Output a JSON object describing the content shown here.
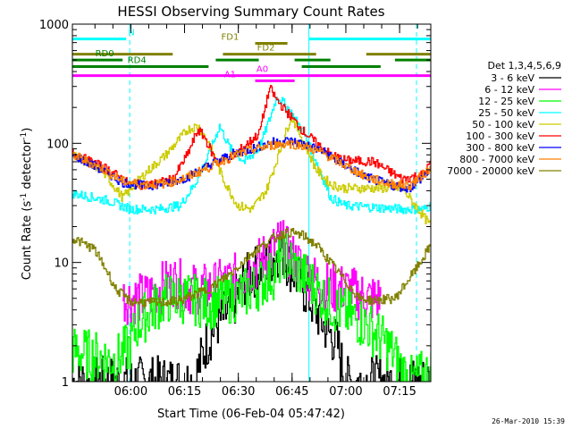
{
  "chart_data": {
    "type": "line",
    "title": "HESSI Observing Summary Count Rates",
    "xlabel": "Start Time (06-Feb-04 05:47:42)",
    "ylabel": "Count Rate (s⁻¹ detector⁻¹)",
    "ylabel_parts": [
      "Count Rate (s",
      "-1",
      " detector",
      "-1",
      ")"
    ],
    "yscale": "log",
    "xlim": [
      -4,
      96
    ],
    "ylim": [
      1,
      1000
    ],
    "x_unit": "minutes after 05:47:42",
    "x_ticks": [
      {
        "x": 12.3,
        "label": "06:00"
      },
      {
        "x": 27.3,
        "label": "06:15"
      },
      {
        "x": 42.3,
        "label": "06:30"
      },
      {
        "x": 57.3,
        "label": "06:45"
      },
      {
        "x": 72.3,
        "label": "07:00"
      },
      {
        "x": 87.3,
        "label": "07:15"
      }
    ],
    "y_ticks": [
      {
        "y": 1,
        "label": "1"
      },
      {
        "y": 10,
        "label": "10"
      },
      {
        "y": 100,
        "label": "100"
      },
      {
        "y": 1000,
        "label": "1000"
      }
    ],
    "legend": {
      "title": "Det 1,3,4,5,6,9",
      "placement": "right"
    },
    "series": [
      {
        "name": "3 - 6 keV",
        "color": "#000000",
        "pts": [
          [
            -4,
            1
          ],
          [
            30,
            1
          ],
          [
            33,
            2
          ],
          [
            36,
            3
          ],
          [
            40,
            4
          ],
          [
            44,
            7
          ],
          [
            48,
            9
          ],
          [
            52,
            11
          ],
          [
            54,
            13
          ],
          [
            56,
            10
          ],
          [
            58,
            8
          ],
          [
            62,
            5
          ],
          [
            66,
            3
          ],
          [
            70,
            2
          ],
          [
            72,
            1
          ],
          [
            96,
            1
          ]
        ]
      },
      {
        "name": "6 - 12 keV",
        "color": "#ff00ff",
        "pts": [
          [
            10,
            5
          ],
          [
            16,
            5
          ],
          [
            20,
            6
          ],
          [
            24,
            7
          ],
          [
            28,
            6
          ],
          [
            34,
            6
          ],
          [
            40,
            7
          ],
          [
            44,
            8
          ],
          [
            48,
            10
          ],
          [
            52,
            13
          ],
          [
            54,
            15
          ],
          [
            56,
            12
          ],
          [
            60,
            9
          ],
          [
            64,
            7
          ],
          [
            68,
            6
          ],
          [
            72,
            6
          ],
          [
            78,
            5
          ],
          [
            82,
            5
          ]
        ]
      },
      {
        "name": "12 - 25 keV",
        "color": "#00ff00",
        "pts": [
          [
            -4,
            1.8
          ],
          [
            8,
            1.5
          ],
          [
            12,
            2
          ],
          [
            14,
            3
          ],
          [
            18,
            4
          ],
          [
            22,
            5
          ],
          [
            28,
            5
          ],
          [
            34,
            4.5
          ],
          [
            40,
            5
          ],
          [
            44,
            5.5
          ],
          [
            48,
            6.5
          ],
          [
            52,
            8
          ],
          [
            55,
            12
          ],
          [
            58,
            9
          ],
          [
            62,
            7
          ],
          [
            66,
            5
          ],
          [
            70,
            4
          ],
          [
            74,
            3.5
          ],
          [
            78,
            3
          ],
          [
            84,
            2
          ],
          [
            90,
            1
          ],
          [
            96,
            1.2
          ]
        ]
      },
      {
        "name": "25 - 50 keV",
        "color": "#00ffff",
        "pts": [
          [
            -4,
            38
          ],
          [
            6,
            33
          ],
          [
            12,
            28
          ],
          [
            20,
            28
          ],
          [
            26,
            30
          ],
          [
            30,
            45
          ],
          [
            34,
            80
          ],
          [
            37,
            140
          ],
          [
            40,
            90
          ],
          [
            44,
            70
          ],
          [
            48,
            90
          ],
          [
            51,
            160
          ],
          [
            53,
            250
          ],
          [
            56,
            200
          ],
          [
            60,
            130
          ],
          [
            64,
            70
          ],
          [
            68,
            35
          ],
          [
            72,
            30
          ],
          [
            80,
            29
          ],
          [
            88,
            28
          ],
          [
            94,
            28
          ],
          [
            96,
            30
          ]
        ]
      },
      {
        "name": "50 - 100 keV",
        "color": "#cccc00",
        "pts": [
          [
            -4,
            80
          ],
          [
            4,
            60
          ],
          [
            10,
            35
          ],
          [
            16,
            55
          ],
          [
            22,
            80
          ],
          [
            28,
            130
          ],
          [
            31,
            140
          ],
          [
            34,
            100
          ],
          [
            38,
            50
          ],
          [
            42,
            30
          ],
          [
            46,
            28
          ],
          [
            50,
            40
          ],
          [
            54,
            90
          ],
          [
            57,
            170
          ],
          [
            60,
            110
          ],
          [
            64,
            60
          ],
          [
            68,
            45
          ],
          [
            72,
            42
          ],
          [
            80,
            42
          ],
          [
            88,
            42
          ],
          [
            96,
            20
          ]
        ]
      },
      {
        "name": "100 - 300 keV",
        "color": "#ff0000",
        "pts": [
          [
            -4,
            82
          ],
          [
            6,
            60
          ],
          [
            12,
            45
          ],
          [
            18,
            45
          ],
          [
            24,
            50
          ],
          [
            28,
            80
          ],
          [
            31,
            130
          ],
          [
            33,
            110
          ],
          [
            36,
            70
          ],
          [
            40,
            75
          ],
          [
            44,
            95
          ],
          [
            48,
            120
          ],
          [
            51,
            290
          ],
          [
            53,
            230
          ],
          [
            56,
            180
          ],
          [
            60,
            130
          ],
          [
            64,
            100
          ],
          [
            68,
            80
          ],
          [
            72,
            72
          ],
          [
            80,
            70
          ],
          [
            88,
            50
          ],
          [
            94,
            55
          ],
          [
            96,
            70
          ]
        ]
      },
      {
        "name": "300 - 800 keV",
        "color": "#0000ff",
        "pts": [
          [
            -4,
            80
          ],
          [
            4,
            60
          ],
          [
            10,
            47
          ],
          [
            16,
            44
          ],
          [
            22,
            46
          ],
          [
            28,
            52
          ],
          [
            34,
            65
          ],
          [
            40,
            80
          ],
          [
            46,
            90
          ],
          [
            52,
            102
          ],
          [
            56,
            105
          ],
          [
            60,
            100
          ],
          [
            66,
            85
          ],
          [
            72,
            65
          ],
          [
            78,
            52
          ],
          [
            84,
            45
          ],
          [
            90,
            42
          ],
          [
            96,
            60
          ]
        ]
      },
      {
        "name": "800 - 7000 keV",
        "color": "#ff8000",
        "pts": [
          [
            -4,
            80
          ],
          [
            4,
            62
          ],
          [
            10,
            48
          ],
          [
            16,
            45
          ],
          [
            22,
            46
          ],
          [
            28,
            52
          ],
          [
            34,
            63
          ],
          [
            40,
            77
          ],
          [
            46,
            88
          ],
          [
            52,
            97
          ],
          [
            56,
            100
          ],
          [
            60,
            96
          ],
          [
            66,
            82
          ],
          [
            72,
            65
          ],
          [
            78,
            52
          ],
          [
            84,
            46
          ],
          [
            90,
            44
          ],
          [
            96,
            62
          ]
        ]
      },
      {
        "name": "7000 - 20000 keV",
        "color": "#808000",
        "pts": [
          [
            -4,
            16
          ],
          [
            2,
            13
          ],
          [
            6,
            8
          ],
          [
            8,
            6
          ],
          [
            12,
            4.7
          ],
          [
            20,
            4.6
          ],
          [
            26,
            4.8
          ],
          [
            34,
            6
          ],
          [
            40,
            8
          ],
          [
            46,
            12
          ],
          [
            52,
            16
          ],
          [
            56,
            18
          ],
          [
            60,
            17
          ],
          [
            64,
            14
          ],
          [
            68,
            10
          ],
          [
            72,
            7
          ],
          [
            76,
            5
          ],
          [
            80,
            4.8
          ],
          [
            86,
            5
          ],
          [
            92,
            9
          ],
          [
            96,
            14
          ]
        ]
      }
    ],
    "flag_bars": [
      {
        "label": "N",
        "color": "#00ffff",
        "y": 750,
        "label_x": 12.5,
        "segments": [
          [
            -4,
            11
          ],
          [
            62,
            96
          ]
        ]
      },
      {
        "label": "FD1",
        "color": "#808000",
        "y": 690,
        "label_x": 40,
        "segments": [
          [
            47,
            56
          ]
        ]
      },
      {
        "label": "FD2",
        "color": "#808000",
        "y": 560,
        "label_x": 50,
        "segments": [
          [
            -4,
            24
          ],
          [
            38,
            64
          ],
          [
            78,
            96
          ]
        ]
      },
      {
        "label": "RD0",
        "color": "#008000",
        "y": 500,
        "label_x": 5,
        "segments": [
          [
            -4,
            10
          ],
          [
            36,
            48
          ],
          [
            58,
            68
          ],
          [
            86,
            96
          ]
        ]
      },
      {
        "label": "RD4",
        "color": "#008000",
        "y": 440,
        "label_x": 14,
        "segments": [
          [
            -4,
            34
          ],
          [
            60,
            82
          ]
        ]
      },
      {
        "label": "A0",
        "color": "#ff00ff",
        "y": 370,
        "label_x": 49,
        "segments": [
          [
            -4,
            96
          ]
        ]
      },
      {
        "label": "A1",
        "color": "#ff00ff",
        "y": 335,
        "label_x": 40,
        "segments": [
          [
            47,
            58
          ]
        ]
      }
    ],
    "vlines": [
      {
        "x": 12,
        "color": "#00ffff",
        "style": "dashed"
      },
      {
        "x": 62,
        "color": "#00ffff",
        "style": "solid"
      },
      {
        "x": 92,
        "color": "#00ffff",
        "style": "dashed"
      }
    ]
  },
  "footer": {
    "stamp": "26-Mar-2010 15:39"
  }
}
